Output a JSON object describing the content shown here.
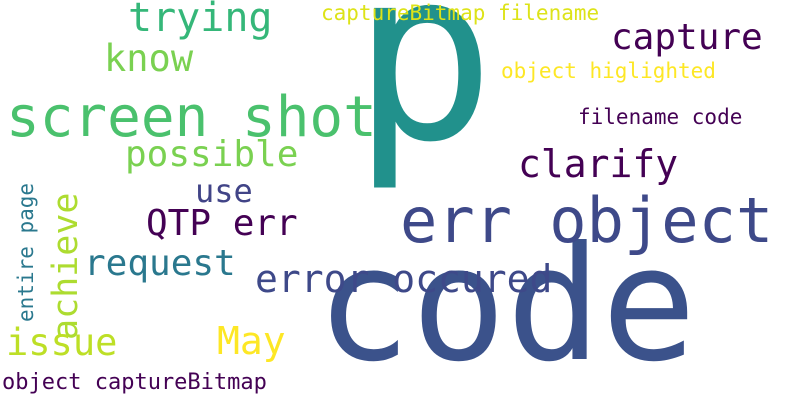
{
  "words": [
    {
      "key": "p",
      "text": "p",
      "color": "#21918c"
    },
    {
      "key": "code",
      "text": "code",
      "color": "#3b528b"
    },
    {
      "key": "err_object",
      "text": "err object",
      "color": "#3e4989"
    },
    {
      "key": "screen_shot",
      "text": "screen shot",
      "color": "#4ac16d"
    },
    {
      "key": "capture",
      "text": "capture",
      "color": "#440154"
    },
    {
      "key": "clarify",
      "text": "clarify",
      "color": "#440154"
    },
    {
      "key": "error_occured",
      "text": "error occured",
      "color": "#3e4989"
    },
    {
      "key": "trying",
      "text": "trying",
      "color": "#35b779"
    },
    {
      "key": "know",
      "text": "know",
      "color": "#7ad151"
    },
    {
      "key": "possible",
      "text": "possible",
      "color": "#7ad151"
    },
    {
      "key": "use",
      "text": "use",
      "color": "#414487"
    },
    {
      "key": "qtp_err",
      "text": "QTP err",
      "color": "#440154"
    },
    {
      "key": "request",
      "text": "request",
      "color": "#2a788e"
    },
    {
      "key": "achieve",
      "text": "achieve",
      "color": "#addc30"
    },
    {
      "key": "issue",
      "text": "issue",
      "color": "#bddf26"
    },
    {
      "key": "may",
      "text": "May",
      "color": "#fde725"
    },
    {
      "key": "capturebitmap_filename",
      "text": "captureBitmap filename",
      "color": "#dde318"
    },
    {
      "key": "object_higlighted",
      "text": "object higlighted",
      "color": "#fde725"
    },
    {
      "key": "filename_code",
      "text": "filename code",
      "color": "#440154"
    },
    {
      "key": "entire_page",
      "text": "entire page",
      "color": "#2a788e"
    },
    {
      "key": "object_capturebitmap",
      "text": "object captureBitmap",
      "color": "#440154"
    }
  ]
}
